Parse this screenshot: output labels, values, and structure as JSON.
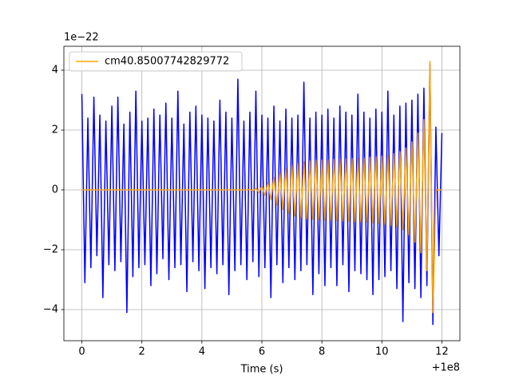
{
  "chart_data": {
    "type": "line",
    "x_label": "Time (s)",
    "x_offset_label": "+1e8",
    "y_offset_label": "1e−22",
    "x": [
      0,
      0.1,
      0.2,
      0.3,
      0.4,
      0.5,
      0.6,
      0.7,
      0.8,
      0.9,
      1,
      1.1,
      1.2,
      1.3,
      1.4,
      1.5,
      1.6,
      1.7,
      1.8,
      1.9,
      2,
      2.1,
      2.2,
      2.3,
      2.4,
      2.5,
      2.6,
      2.7,
      2.8,
      2.9,
      3,
      3.1,
      3.2,
      3.3,
      3.4,
      3.5,
      3.6,
      3.7,
      3.8,
      3.9,
      4,
      4.1,
      4.2,
      4.3,
      4.4,
      4.5,
      4.6,
      4.7,
      4.8,
      4.9,
      5,
      5.1,
      5.2,
      5.3,
      5.4,
      5.5,
      5.6,
      5.7,
      5.8,
      5.9,
      6,
      6.1,
      6.2,
      6.3,
      6.4,
      6.5,
      6.6,
      6.7,
      6.8,
      6.9,
      7,
      7.1,
      7.2,
      7.3,
      7.4,
      7.5,
      7.6,
      7.7,
      7.8,
      7.9,
      8,
      8.1,
      8.2,
      8.3,
      8.4,
      8.5,
      8.6,
      8.7,
      8.8,
      8.9,
      9,
      9.1,
      9.2,
      9.3,
      9.4,
      9.5,
      9.6,
      9.7,
      9.8,
      9.9,
      10,
      10.1,
      10.2,
      10.3,
      10.4,
      10.5,
      10.6,
      10.7,
      10.8,
      10.9,
      11,
      11.1,
      11.2,
      11.3,
      11.4,
      11.5,
      11.6,
      11.7,
      11.8,
      11.9,
      12
    ],
    "series": [
      {
        "color": "#0000ff",
        "values": [
          3.2,
          -3.1,
          2.4,
          -2.6,
          3.1,
          -2.2,
          2.5,
          -3.6,
          2.3,
          -2.5,
          2.8,
          -2.7,
          3.1,
          -2.4,
          2.2,
          -4.1,
          2.6,
          -2.9,
          3.3,
          -2.6,
          2.3,
          -2.5,
          2.4,
          -3.2,
          2.7,
          -2.8,
          2.5,
          -2.3,
          2.9,
          -3.0,
          2.4,
          -2.6,
          3.3,
          -2.5,
          2.2,
          -3.4,
          2.6,
          -2.4,
          2.8,
          -2.7,
          2.5,
          -3.3,
          2.4,
          -2.6,
          2.3,
          -2.8,
          3.0,
          -2.5,
          2.6,
          -3.5,
          2.4,
          -2.7,
          3.7,
          -2.5,
          2.3,
          -3.0,
          2.6,
          -2.4,
          3.3,
          -2.9,
          2.5,
          -2.6,
          2.4,
          -3.6,
          2.8,
          -2.5,
          2.3,
          -3.1,
          2.7,
          -2.6,
          2.4,
          -3.0,
          2.5,
          -2.7,
          3.6,
          -2.5,
          2.4,
          -3.5,
          2.6,
          -2.8,
          2.5,
          -3.2,
          2.7,
          -2.6,
          2.4,
          -3.2,
          2.8,
          -2.5,
          2.6,
          -3.4,
          2.5,
          -2.7,
          3.2,
          -2.8,
          2.6,
          -3.0,
          2.4,
          -3.5,
          2.7,
          -3.0,
          2.6,
          -2.9,
          3.3,
          -2.7,
          2.5,
          -3.3,
          2.8,
          -4.4,
          2.9,
          -3.1,
          3.0,
          -3.3,
          3.2,
          -3.6,
          3.4,
          -3.2,
          4.2,
          -4.5,
          2.1,
          -2.2,
          1.9
        ]
      },
      {
        "name": "cm40.85007742829772",
        "color": "#ffa500",
        "values": [
          0,
          0,
          0,
          0,
          0,
          0,
          0,
          0,
          0,
          0,
          0,
          0,
          0,
          0,
          0,
          0,
          0,
          0,
          0,
          0,
          0,
          0,
          0,
          0,
          0,
          0,
          0,
          0,
          0,
          0,
          0,
          0,
          0,
          0,
          0,
          0,
          0,
          0,
          0,
          0,
          0,
          0,
          0,
          0,
          0,
          0,
          0,
          0,
          0,
          0,
          0,
          0,
          0,
          0,
          0,
          0,
          0.02,
          -0.04,
          0.06,
          -0.09,
          0.13,
          -0.18,
          0.25,
          -0.33,
          0.42,
          -0.5,
          0.58,
          -0.65,
          0.72,
          -0.78,
          0.83,
          -0.87,
          0.9,
          -0.93,
          0.95,
          -0.97,
          0.98,
          -0.99,
          1.0,
          -1.0,
          1.0,
          -1.01,
          1.01,
          -1.02,
          1.02,
          -1.03,
          1.03,
          -1.04,
          1.04,
          -1.05,
          1.05,
          -1.06,
          1.06,
          -1.07,
          1.07,
          -1.08,
          1.09,
          -1.1,
          1.11,
          -1.12,
          1.13,
          -1.15,
          1.17,
          -1.19,
          1.21,
          -1.24,
          1.28,
          -1.33,
          1.4,
          -1.5,
          1.6,
          -1.75,
          1.9,
          -2.1,
          2.35,
          -2.7,
          4.3,
          -4.1,
          0,
          0,
          0
        ]
      }
    ],
    "xlim": [
      -0.6,
      12.6
    ],
    "xticks": [
      0,
      2,
      4,
      6,
      8,
      10,
      12
    ],
    "ylim": [
      -5.04,
      4.8
    ],
    "yticks": [
      {
        "value": -4,
        "label": "−4"
      },
      {
        "value": -2,
        "label": "−2"
      },
      0,
      2,
      4
    ],
    "grid": true,
    "legend": "upper left"
  }
}
